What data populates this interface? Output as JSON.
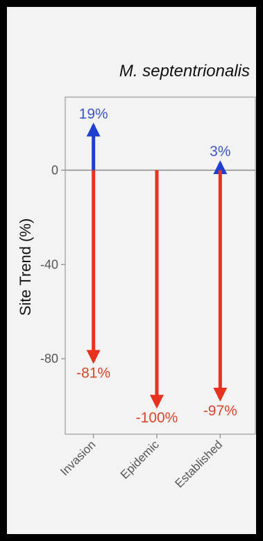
{
  "chart_data": {
    "type": "arrow",
    "title": "M. septentrionalis",
    "xlabel": "",
    "ylabel": "Site Trend (%)",
    "ylim": [
      -112,
      31
    ],
    "yticks": [
      0,
      -40,
      -80
    ],
    "ytick_labels": [
      "0",
      "-40",
      "-80"
    ],
    "categories": [
      "Invasion",
      "Epidemic",
      "Established"
    ],
    "series": [
      {
        "name": "",
        "color": "#1f3fd0",
        "values": [
          19,
          null,
          3
        ],
        "labels": [
          "19%",
          "",
          "3%"
        ]
      },
      {
        "name": "",
        "color": "#e8321e",
        "values": [
          -81,
          -100,
          -97
        ],
        "labels": [
          "-81%",
          "-100%",
          "-97%"
        ]
      }
    ],
    "grid": false,
    "baseline": 0,
    "colors": {
      "panel": "#f3f3f3",
      "axis": "#888888",
      "label_blue": "#3a56c8",
      "label_red": "#d9452b"
    }
  }
}
